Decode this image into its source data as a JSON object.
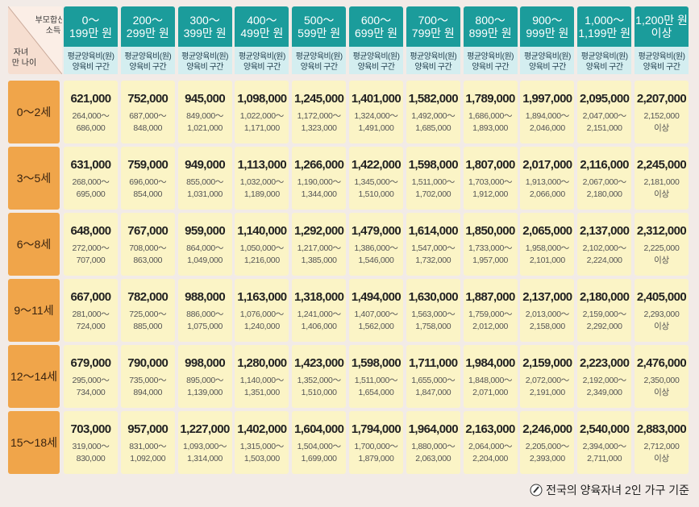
{
  "corner": {
    "top": [
      "부모합산",
      "소득"
    ],
    "bottom": [
      "자녀",
      "만 나이"
    ]
  },
  "header": {
    "columns": [
      [
        "0～",
        "199만 원"
      ],
      [
        "200～",
        "299만 원"
      ],
      [
        "300～",
        "399만 원"
      ],
      [
        "400～",
        "499만 원"
      ],
      [
        "500～",
        "599만 원"
      ],
      [
        "600～",
        "699만 원"
      ],
      [
        "700～",
        "799만 원"
      ],
      [
        "800～",
        "899만 원"
      ],
      [
        "900～",
        "999만 원"
      ],
      [
        "1,000～",
        "1,199만 원"
      ],
      [
        "1,200만 원",
        "이상"
      ]
    ],
    "sub": [
      "평균양육비(원)",
      "양육비 구간"
    ]
  },
  "table": {
    "rows": [
      {
        "label": "0～2세",
        "cells": [
          [
            "621,000",
            "264,000～",
            "686,000"
          ],
          [
            "752,000",
            "687,000～",
            "848,000"
          ],
          [
            "945,000",
            "849,000～",
            "1,021,000"
          ],
          [
            "1,098,000",
            "1,022,000～",
            "1,171,000"
          ],
          [
            "1,245,000",
            "1,172,000～",
            "1,323,000"
          ],
          [
            "1,401,000",
            "1,324,000～",
            "1,491,000"
          ],
          [
            "1,582,000",
            "1,492,000～",
            "1,685,000"
          ],
          [
            "1,789,000",
            "1,686,000～",
            "1,893,000"
          ],
          [
            "1,997,000",
            "1,894,000～",
            "2,046,000"
          ],
          [
            "2,095,000",
            "2,047,000～",
            "2,151,000"
          ],
          [
            "2,207,000",
            "2,152,000",
            "이상"
          ]
        ]
      },
      {
        "label": "3～5세",
        "cells": [
          [
            "631,000",
            "268,000～",
            "695,000"
          ],
          [
            "759,000",
            "696,000～",
            "854,000"
          ],
          [
            "949,000",
            "855,000～",
            "1,031,000"
          ],
          [
            "1,113,000",
            "1,032,000～",
            "1,189,000"
          ],
          [
            "1,266,000",
            "1,190,000～",
            "1,344,000"
          ],
          [
            "1,422,000",
            "1,345,000～",
            "1,510,000"
          ],
          [
            "1,598,000",
            "1,511,000～",
            "1,702,000"
          ],
          [
            "1,807,000",
            "1,703,000～",
            "1,912,000"
          ],
          [
            "2,017,000",
            "1,913,000～",
            "2,066,000"
          ],
          [
            "2,116,000",
            "2,067,000～",
            "2,180,000"
          ],
          [
            "2,245,000",
            "2,181,000",
            "이상"
          ]
        ]
      },
      {
        "label": "6～8세",
        "cells": [
          [
            "648,000",
            "272,000～",
            "707,000"
          ],
          [
            "767,000",
            "708,000～",
            "863,000"
          ],
          [
            "959,000",
            "864,000～",
            "1,049,000"
          ],
          [
            "1,140,000",
            "1,050,000～",
            "1,216,000"
          ],
          [
            "1,292,000",
            "1,217,000～",
            "1,385,000"
          ],
          [
            "1,479,000",
            "1,386,000～",
            "1,546,000"
          ],
          [
            "1,614,000",
            "1,547,000～",
            "1,732,000"
          ],
          [
            "1,850,000",
            "1,733,000～",
            "1,957,000"
          ],
          [
            "2,065,000",
            "1,958,000～",
            "2,101,000"
          ],
          [
            "2,137,000",
            "2,102,000～",
            "2,224,000"
          ],
          [
            "2,312,000",
            "2,225,000",
            "이상"
          ]
        ]
      },
      {
        "label": "9～11세",
        "cells": [
          [
            "667,000",
            "281,000～",
            "724,000"
          ],
          [
            "782,000",
            "725,000～",
            "885,000"
          ],
          [
            "988,000",
            "886,000～",
            "1,075,000"
          ],
          [
            "1,163,000",
            "1,076,000～",
            "1,240,000"
          ],
          [
            "1,318,000",
            "1,241,000～",
            "1,406,000"
          ],
          [
            "1,494,000",
            "1,407,000～",
            "1,562,000"
          ],
          [
            "1,630,000",
            "1,563,000～",
            "1,758,000"
          ],
          [
            "1,887,000",
            "1,759,000～",
            "2,012,000"
          ],
          [
            "2,137,000",
            "2,013,000～",
            "2,158,000"
          ],
          [
            "2,180,000",
            "2,159,000～",
            "2,292,000"
          ],
          [
            "2,405,000",
            "2,293,000",
            "이상"
          ]
        ]
      },
      {
        "label": "12～14세",
        "cells": [
          [
            "679,000",
            "295,000～",
            "734,000"
          ],
          [
            "790,000",
            "735,000～",
            "894,000"
          ],
          [
            "998,000",
            "895,000～",
            "1,139,000"
          ],
          [
            "1,280,000",
            "1,140,000～",
            "1,351,000"
          ],
          [
            "1,423,000",
            "1,352,000～",
            "1,510,000"
          ],
          [
            "1,598,000",
            "1,511,000～",
            "1,654,000"
          ],
          [
            "1,711,000",
            "1,655,000～",
            "1,847,000"
          ],
          [
            "1,984,000",
            "1,848,000～",
            "2,071,000"
          ],
          [
            "2,159,000",
            "2,072,000～",
            "2,191,000"
          ],
          [
            "2,223,000",
            "2,192,000～",
            "2,349,000"
          ],
          [
            "2,476,000",
            "2,350,000",
            "이상"
          ]
        ]
      },
      {
        "label": "15～18세",
        "cells": [
          [
            "703,000",
            "319,000～",
            "830,000"
          ],
          [
            "957,000",
            "831,000～",
            "1,092,000"
          ],
          [
            "1,227,000",
            "1,093,000～",
            "1,314,000"
          ],
          [
            "1,402,000",
            "1,315,000～",
            "1,503,000"
          ],
          [
            "1,604,000",
            "1,504,000～",
            "1,699,000"
          ],
          [
            "1,794,000",
            "1,700,000～",
            "1,879,000"
          ],
          [
            "1,964,000",
            "1,880,000～",
            "2,063,000"
          ],
          [
            "2,163,000",
            "2,064,000～",
            "2,204,000"
          ],
          [
            "2,246,000",
            "2,205,000～",
            "2,393,000"
          ],
          [
            "2,540,000",
            "2,394,000～",
            "2,711,000"
          ],
          [
            "2,883,000",
            "2,712,000",
            "이상"
          ]
        ]
      }
    ]
  },
  "footer": "전국의 양육자녀 2인 가구 기준"
}
